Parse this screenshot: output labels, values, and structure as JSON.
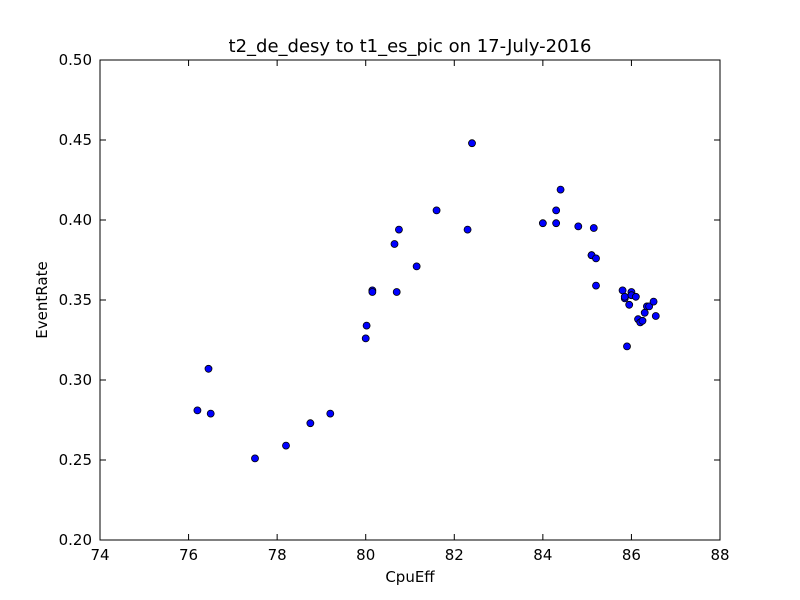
{
  "chart_data": {
    "type": "scatter",
    "title": "t2_de_desy to t1_es_pic on 17-July-2016",
    "xlabel": "CpuEff",
    "ylabel": "EventRate",
    "xlim": [
      74,
      88
    ],
    "ylim": [
      0.2,
      0.5
    ],
    "xticks": [
      74,
      76,
      78,
      80,
      82,
      84,
      86,
      88
    ],
    "yticks": [
      0.2,
      0.25,
      0.3,
      0.35,
      0.4,
      0.45,
      0.5
    ],
    "xtick_labels": [
      "74",
      "76",
      "78",
      "80",
      "82",
      "84",
      "86",
      "88"
    ],
    "ytick_labels": [
      "0.20",
      "0.25",
      "0.30",
      "0.35",
      "0.40",
      "0.45",
      "0.50"
    ],
    "grid": false,
    "marker_color": "#0000ff",
    "marker_edge_color": "#000000",
    "series": [
      {
        "x": [
          76.2,
          76.45,
          76.5,
          77.5,
          78.2,
          78.75,
          79.2,
          80.0,
          80.02,
          80.15,
          80.15,
          80.65,
          80.7,
          80.75,
          81.15,
          81.6,
          82.3,
          82.4,
          84.0,
          84.3,
          84.3,
          84.4,
          84.8,
          85.1,
          85.1,
          85.15,
          85.2,
          85.2,
          85.8,
          85.85,
          85.85,
          85.9,
          85.95,
          86.0,
          86.0,
          86.1,
          86.15,
          86.2,
          86.25,
          86.3,
          86.35,
          86.4,
          86.5,
          86.55
        ],
        "y": [
          0.281,
          0.307,
          0.279,
          0.251,
          0.259,
          0.273,
          0.279,
          0.326,
          0.334,
          0.356,
          0.355,
          0.385,
          0.355,
          0.394,
          0.371,
          0.406,
          0.394,
          0.448,
          0.398,
          0.398,
          0.406,
          0.419,
          0.396,
          0.378,
          0.378,
          0.395,
          0.376,
          0.359,
          0.356,
          0.351,
          0.352,
          0.321,
          0.347,
          0.355,
          0.353,
          0.352,
          0.338,
          0.336,
          0.337,
          0.342,
          0.346,
          0.346,
          0.349,
          0.34
        ]
      }
    ]
  }
}
